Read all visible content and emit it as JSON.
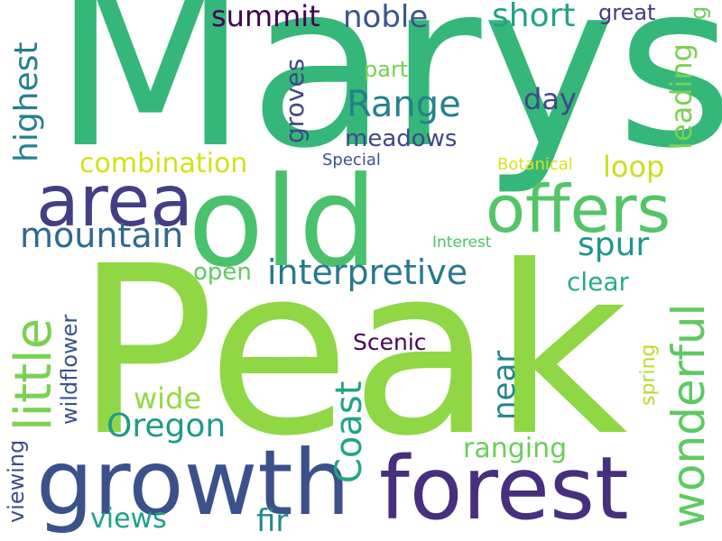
{
  "words": [
    {
      "key": "peak",
      "text": "Peak",
      "color": "#8fd744"
    },
    {
      "key": "marys",
      "text": "Marys",
      "color": "#35b779"
    },
    {
      "key": "old",
      "text": "old",
      "color": "#4ac16d"
    },
    {
      "key": "growth",
      "text": "growth",
      "color": "#3b518b"
    },
    {
      "key": "forest",
      "text": "forest",
      "color": "#472f7d"
    },
    {
      "key": "area",
      "text": "area",
      "color": "#433e85"
    },
    {
      "key": "offers",
      "text": "offers",
      "color": "#52c569"
    },
    {
      "key": "little",
      "text": "little",
      "color": "#7ad151"
    },
    {
      "key": "wonderful",
      "text": "wonderful",
      "color": "#5ec962"
    },
    {
      "key": "mountain",
      "text": "mountain",
      "color": "#31688e"
    },
    {
      "key": "coast",
      "text": "Coast",
      "color": "#21a585"
    },
    {
      "key": "oregon",
      "text": "Oregon",
      "color": "#1f9a8a"
    },
    {
      "key": "interpretive",
      "text": "interpretive",
      "color": "#2a788e"
    },
    {
      "key": "range",
      "text": "Range",
      "color": "#26818e"
    },
    {
      "key": "highest",
      "text": "highest",
      "color": "#277f8e"
    },
    {
      "key": "spur",
      "text": "spur",
      "color": "#1f958b"
    },
    {
      "key": "summit",
      "text": "summit",
      "color": "#440154"
    },
    {
      "key": "noble",
      "text": "noble",
      "color": "#39568c"
    },
    {
      "key": "short",
      "text": "short",
      "color": "#20a386"
    },
    {
      "key": "combination",
      "text": "combination",
      "color": "#d2e21b"
    },
    {
      "key": "loop",
      "text": "loop",
      "color": "#c8e020"
    },
    {
      "key": "near",
      "text": "near",
      "color": "#25848e"
    },
    {
      "key": "wide",
      "text": "wide",
      "color": "#95d840"
    },
    {
      "key": "ranging",
      "text": "ranging",
      "color": "#6ccd5a"
    },
    {
      "key": "views",
      "text": "views",
      "color": "#1fa088"
    },
    {
      "key": "fir",
      "text": "fir",
      "color": "#23898e"
    },
    {
      "key": "meadows",
      "text": "meadows",
      "color": "#404688"
    },
    {
      "key": "day",
      "text": "day",
      "color": "#3e4989"
    },
    {
      "key": "groves",
      "text": "groves",
      "color": "#3f4788"
    },
    {
      "key": "leading",
      "text": "leading",
      "color": "#7ad151"
    },
    {
      "key": "great",
      "text": "great",
      "color": "#443a83"
    },
    {
      "key": "clear",
      "text": "clear",
      "color": "#27ad81"
    },
    {
      "key": "open",
      "text": "open",
      "color": "#5ec962"
    },
    {
      "key": "scenic",
      "text": "Scenic",
      "color": "#450559"
    },
    {
      "key": "wildflower",
      "text": "wildflower",
      "color": "#3b528b"
    },
    {
      "key": "spring",
      "text": "spring",
      "color": "#b5de2b"
    },
    {
      "key": "viewing",
      "text": "viewing",
      "color": "#3e4c8a"
    },
    {
      "key": "part",
      "text": "part",
      "color": "#75d054"
    },
    {
      "key": "special",
      "text": "Special",
      "color": "#3b528b"
    },
    {
      "key": "botanical",
      "text": "Botanical",
      "color": "#dde318"
    },
    {
      "key": "interest",
      "text": "Interest",
      "color": "#4ac16d"
    },
    {
      "key": "great_g",
      "text": "g",
      "color": "#6ccd5a"
    }
  ]
}
